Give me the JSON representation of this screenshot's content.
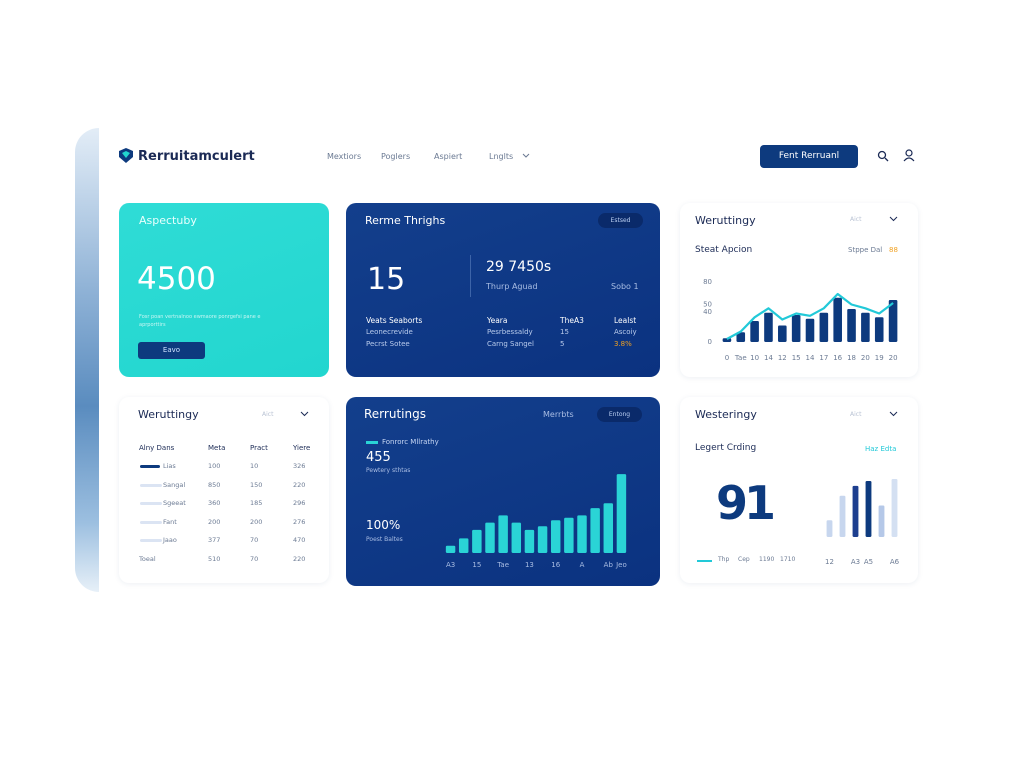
{
  "header": {
    "logo": "Rerruitamculert",
    "nav": [
      "Mextiors",
      "Poglers",
      "Aspiert",
      "Lnglts"
    ],
    "button": "Fent Rerruanl"
  },
  "aspect_card": {
    "title": "Aspectuby",
    "value": "4500",
    "note": "Fosr poan vertnalnoo ewmaore ponrgefsi pane e aprporttirs",
    "button": "Eavo"
  },
  "range_card": {
    "title": "Rerme Thrighs",
    "badge": "Estsed",
    "value": "15",
    "value2": "29 7450s",
    "sub": "Thurp Aguad",
    "sub2": "Sobo 1",
    "rows": [
      [
        "Veats Seaborts",
        "Yeara",
        "TheA3",
        "Lealst"
      ],
      [
        "Leonecrevide",
        "Pesrbessaldy",
        "15",
        "Ascoiy"
      ],
      [
        "Pecrst Sotee",
        "Carng Sangel",
        "5",
        "3.8%"
      ]
    ]
  },
  "action_card": {
    "title": "Weruttingy",
    "filter": "Aict",
    "subtitle": "Steat Apcion",
    "note": "Stppe Dal",
    "highlight": "88"
  },
  "table_card": {
    "title": "Weruttingy",
    "filter": "Aict",
    "columns": [
      "Alny Dans",
      "Meta",
      "Pract",
      "Yiere"
    ],
    "rows": [
      [
        "Lias",
        "100",
        "10",
        "326"
      ],
      [
        "Sangal",
        "850",
        "150",
        "220"
      ],
      [
        "Sgeeat",
        "360",
        "185",
        "296"
      ],
      [
        "Fant",
        "200",
        "200",
        "276"
      ],
      [
        "Jaao",
        "377",
        "70",
        "470"
      ],
      [
        "Toeal",
        "510",
        "70",
        "220"
      ]
    ]
  },
  "recruit_card": {
    "title": "Rerrutings",
    "link": "Merrbts",
    "badge": "Entong",
    "legend": "Fonrorc Mllrathy",
    "value": "455",
    "value_note": "Pewtery sthtas",
    "value2": "100%",
    "value2_note": "Poest Baltes"
  },
  "western_card": {
    "title": "Westeringy",
    "filter": "Aict",
    "subtitle": "Legert Crding",
    "link": "Haz Edta",
    "value": "91",
    "legend": [
      "Thp",
      "Cep",
      "1190",
      "1710"
    ]
  },
  "chart_data": [
    {
      "type": "combo",
      "categories": [
        "0",
        "Tae",
        "10",
        "14",
        "12",
        "15",
        "14",
        "17",
        "16",
        "18",
        "20",
        "19",
        "20"
      ],
      "series": [
        {
          "type": "bar",
          "color": "#0d3a7e",
          "values": [
            5,
            13,
            28,
            39,
            22,
            36,
            31,
            39,
            59,
            44,
            39,
            33,
            56
          ]
        },
        {
          "type": "line",
          "color": "#22c9d8",
          "values": [
            4,
            14,
            33,
            45,
            30,
            38,
            35,
            45,
            64,
            50,
            45,
            38,
            52
          ]
        }
      ],
      "ylim": [
        0,
        100
      ],
      "yticks": [
        80,
        50,
        40,
        0
      ]
    },
    {
      "type": "bar",
      "categories": [
        "A3",
        null,
        "15",
        null,
        "Tae",
        null,
        "13",
        null,
        "16",
        null,
        "A",
        null,
        "Ab",
        "Jeo"
      ],
      "values": [
        6,
        12,
        19,
        25,
        31,
        25,
        19,
        22,
        27,
        29,
        31,
        37,
        41,
        65
      ],
      "color": "#2ad4d6",
      "ylim": [
        0,
        70
      ]
    },
    {
      "type": "bar",
      "categories": [
        "12",
        null,
        "A3",
        "A5",
        null,
        "A6"
      ],
      "values": [
        17,
        42,
        52,
        57,
        32,
        59
      ],
      "colors": [
        "#c7d6ee",
        "#c7d6ee",
        "#1d3f8f",
        "#0d3a7e",
        "#b5c8e8",
        "#d4e0f2"
      ],
      "ylim": [
        0,
        60
      ]
    }
  ]
}
